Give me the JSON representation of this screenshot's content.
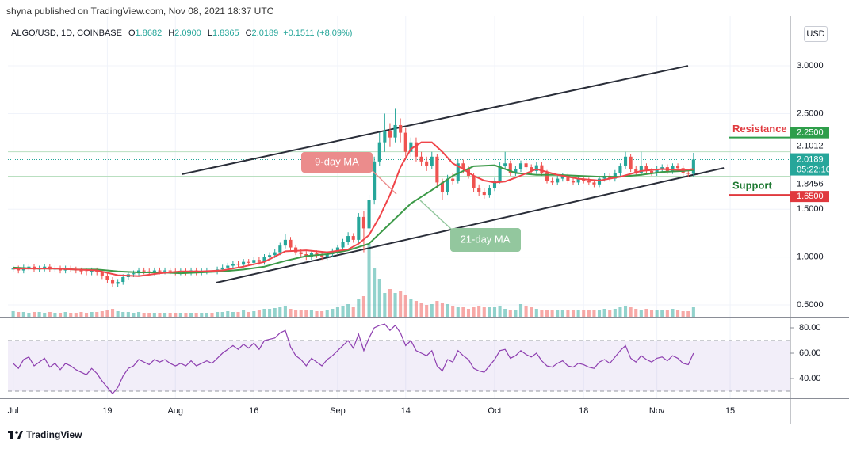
{
  "chart_data": {
    "type": "candlestick",
    "published": "shyna published on TradingView.com, Nov 08, 2021 18:37 UTC",
    "header": {
      "symbol": "ALGO/USD, 1D, COINBASE",
      "ohlc": [
        {
          "key": "O",
          "value": "1.8682"
        },
        {
          "key": "H",
          "value": "2.0900"
        },
        {
          "key": "L",
          "value": "1.8365"
        },
        {
          "key": "C",
          "value": "2.0189"
        }
      ],
      "change": "+0.1511 (+8.09%)"
    },
    "currency": "USD",
    "brand": "TradingView",
    "up_color": "#26a69a",
    "down_color": "#ef5350",
    "xlim": [
      -1,
      148.5
    ],
    "xticks": [
      {
        "value": 0,
        "label": "Jul"
      },
      {
        "value": 18,
        "label": "19"
      },
      {
        "value": 31,
        "label": "Aug"
      },
      {
        "value": 46,
        "label": "16"
      },
      {
        "value": 62,
        "label": "Sep"
      },
      {
        "value": 75,
        "label": "14"
      },
      {
        "value": 92,
        "label": "Oct"
      },
      {
        "value": 109,
        "label": "18"
      },
      {
        "value": 123,
        "label": "Nov"
      },
      {
        "value": 137,
        "label": "15"
      }
    ],
    "ylim": [
      0.376,
      3.522
    ],
    "yticks": [
      {
        "value": 0.5,
        "label": "0.5000"
      },
      {
        "value": 1,
        "label": "1.0000"
      },
      {
        "value": 1.5,
        "label": "1.5000"
      },
      {
        "value": 2.5,
        "label": "2.5000"
      },
      {
        "value": 3,
        "label": "3.0000"
      }
    ],
    "grid": true,
    "ohlc": [
      [
        0.87,
        0.91,
        0.84,
        0.88
      ],
      [
        0.88,
        0.91,
        0.83,
        0.86
      ],
      [
        0.86,
        0.92,
        0.83,
        0.89
      ],
      [
        0.89,
        0.93,
        0.86,
        0.9
      ],
      [
        0.9,
        0.93,
        0.84,
        0.87
      ],
      [
        0.87,
        0.91,
        0.84,
        0.88
      ],
      [
        0.88,
        0.93,
        0.85,
        0.9
      ],
      [
        0.9,
        0.93,
        0.84,
        0.87
      ],
      [
        0.87,
        0.91,
        0.84,
        0.88
      ],
      [
        0.88,
        0.91,
        0.83,
        0.86
      ],
      [
        0.86,
        0.91,
        0.83,
        0.88
      ],
      [
        0.88,
        0.91,
        0.84,
        0.87
      ],
      [
        0.87,
        0.9,
        0.83,
        0.86
      ],
      [
        0.86,
        0.89,
        0.82,
        0.85
      ],
      [
        0.85,
        0.88,
        0.81,
        0.84
      ],
      [
        0.84,
        0.89,
        0.81,
        0.86
      ],
      [
        0.86,
        0.89,
        0.81,
        0.84
      ],
      [
        0.84,
        0.87,
        0.77,
        0.8
      ],
      [
        0.8,
        0.83,
        0.73,
        0.76
      ],
      [
        0.76,
        0.79,
        0.69,
        0.72
      ],
      [
        0.72,
        0.77,
        0.69,
        0.74
      ],
      [
        0.74,
        0.82,
        0.71,
        0.79
      ],
      [
        0.79,
        0.85,
        0.76,
        0.82
      ],
      [
        0.82,
        0.86,
        0.79,
        0.83
      ],
      [
        0.83,
        0.89,
        0.8,
        0.86
      ],
      [
        0.86,
        0.89,
        0.82,
        0.85
      ],
      [
        0.85,
        0.88,
        0.81,
        0.84
      ],
      [
        0.84,
        0.89,
        0.81,
        0.86
      ],
      [
        0.86,
        0.89,
        0.82,
        0.85
      ],
      [
        0.85,
        0.89,
        0.82,
        0.86
      ],
      [
        0.86,
        0.89,
        0.82,
        0.85
      ],
      [
        0.85,
        0.88,
        0.81,
        0.84
      ],
      [
        0.84,
        0.88,
        0.81,
        0.85
      ],
      [
        0.85,
        0.88,
        0.81,
        0.84
      ],
      [
        0.84,
        0.89,
        0.81,
        0.86
      ],
      [
        0.86,
        0.89,
        0.81,
        0.84
      ],
      [
        0.84,
        0.88,
        0.81,
        0.85
      ],
      [
        0.85,
        0.89,
        0.82,
        0.86
      ],
      [
        0.86,
        0.89,
        0.82,
        0.85
      ],
      [
        0.85,
        0.9,
        0.82,
        0.87
      ],
      [
        0.87,
        0.92,
        0.84,
        0.89
      ],
      [
        0.89,
        0.94,
        0.86,
        0.91
      ],
      [
        0.91,
        0.96,
        0.88,
        0.93
      ],
      [
        0.93,
        0.96,
        0.89,
        0.92
      ],
      [
        0.92,
        0.98,
        0.89,
        0.95
      ],
      [
        0.95,
        0.98,
        0.91,
        0.94
      ],
      [
        0.94,
        1.0,
        0.91,
        0.97
      ],
      [
        0.97,
        1.0,
        0.92,
        0.95
      ],
      [
        0.95,
        1.03,
        0.92,
        1.0
      ],
      [
        1.0,
        1.05,
        0.97,
        1.02
      ],
      [
        1.02,
        1.08,
        0.99,
        1.05
      ],
      [
        1.05,
        1.15,
        1.02,
        1.12
      ],
      [
        1.12,
        1.24,
        1.09,
        1.18
      ],
      [
        1.18,
        1.21,
        1.07,
        1.1
      ],
      [
        1.1,
        1.13,
        1.02,
        1.05
      ],
      [
        1.05,
        1.08,
        1.0,
        1.03
      ],
      [
        1.03,
        1.06,
        0.97,
        1.0
      ],
      [
        1.0,
        1.07,
        0.97,
        1.04
      ],
      [
        1.04,
        1.07,
        0.99,
        1.02
      ],
      [
        1.02,
        1.05,
        0.97,
        1.0
      ],
      [
        1.0,
        1.06,
        0.97,
        1.03
      ],
      [
        1.03,
        1.09,
        1.0,
        1.06
      ],
      [
        1.06,
        1.13,
        1.03,
        1.1
      ],
      [
        1.1,
        1.19,
        1.07,
        1.16
      ],
      [
        1.16,
        1.26,
        1.13,
        1.22
      ],
      [
        1.22,
        1.25,
        1.15,
        1.18
      ],
      [
        1.18,
        1.46,
        1.15,
        1.42
      ],
      [
        1.42,
        1.48,
        1.05,
        1.3
      ],
      [
        1.3,
        1.65,
        1.25,
        1.6
      ],
      [
        1.6,
        2.05,
        1.55,
        2.0
      ],
      [
        2.0,
        2.3,
        1.95,
        2.2
      ],
      [
        2.2,
        2.5,
        2.1,
        2.32
      ],
      [
        2.32,
        2.4,
        2.15,
        2.25
      ],
      [
        2.25,
        2.55,
        2.2,
        2.38
      ],
      [
        2.38,
        2.45,
        2.2,
        2.3
      ],
      [
        2.3,
        2.35,
        2.05,
        2.1
      ],
      [
        2.1,
        2.25,
        2.05,
        2.2
      ],
      [
        2.2,
        2.25,
        2.0,
        2.05
      ],
      [
        2.05,
        2.1,
        1.95,
        2.0
      ],
      [
        2.0,
        2.05,
        1.9,
        1.95
      ],
      [
        1.95,
        2.1,
        1.92,
        2.05
      ],
      [
        2.05,
        2.08,
        1.72,
        1.78
      ],
      [
        1.78,
        1.82,
        1.6,
        1.68
      ],
      [
        1.68,
        1.86,
        1.65,
        1.82
      ],
      [
        1.82,
        1.88,
        1.76,
        1.8
      ],
      [
        1.8,
        2.02,
        1.77,
        1.98
      ],
      [
        1.98,
        2.02,
        1.88,
        1.92
      ],
      [
        1.92,
        1.95,
        1.82,
        1.85
      ],
      [
        1.85,
        1.88,
        1.68,
        1.72
      ],
      [
        1.72,
        1.76,
        1.64,
        1.68
      ],
      [
        1.68,
        1.72,
        1.61,
        1.65
      ],
      [
        1.65,
        1.75,
        1.62,
        1.72
      ],
      [
        1.72,
        1.83,
        1.69,
        1.8
      ],
      [
        1.8,
        1.99,
        1.77,
        1.95
      ],
      [
        1.95,
        2.1,
        1.92,
        1.98
      ],
      [
        1.98,
        2.01,
        1.85,
        1.88
      ],
      [
        1.88,
        1.95,
        1.85,
        1.92
      ],
      [
        1.92,
        2.01,
        1.89,
        1.98
      ],
      [
        1.98,
        2.01,
        1.91,
        1.94
      ],
      [
        1.94,
        1.97,
        1.87,
        1.9
      ],
      [
        1.9,
        1.99,
        1.87,
        1.96
      ],
      [
        1.96,
        1.99,
        1.85,
        1.88
      ],
      [
        1.88,
        1.91,
        1.77,
        1.8
      ],
      [
        1.8,
        1.83,
        1.75,
        1.78
      ],
      [
        1.78,
        1.85,
        1.75,
        1.82
      ],
      [
        1.82,
        1.88,
        1.79,
        1.85
      ],
      [
        1.85,
        1.88,
        1.77,
        1.8
      ],
      [
        1.8,
        1.83,
        1.75,
        1.78
      ],
      [
        1.78,
        1.85,
        1.75,
        1.82
      ],
      [
        1.82,
        1.85,
        1.77,
        1.8
      ],
      [
        1.8,
        1.83,
        1.75,
        1.78
      ],
      [
        1.78,
        1.81,
        1.73,
        1.76
      ],
      [
        1.76,
        1.85,
        1.73,
        1.82
      ],
      [
        1.82,
        1.88,
        1.79,
        1.85
      ],
      [
        1.85,
        1.88,
        1.79,
        1.82
      ],
      [
        1.82,
        1.91,
        1.79,
        1.88
      ],
      [
        1.88,
        1.98,
        1.85,
        1.95
      ],
      [
        1.95,
        2.1,
        1.92,
        2.05
      ],
      [
        2.05,
        2.08,
        1.89,
        1.92
      ],
      [
        1.92,
        1.95,
        1.85,
        1.88
      ],
      [
        1.88,
        2.1,
        1.85,
        1.95
      ],
      [
        1.95,
        1.98,
        1.87,
        1.9
      ],
      [
        1.9,
        1.93,
        1.85,
        1.88
      ],
      [
        1.88,
        1.95,
        1.85,
        1.92
      ],
      [
        1.92,
        1.97,
        1.89,
        1.94
      ],
      [
        1.94,
        1.97,
        1.87,
        1.9
      ],
      [
        1.9,
        1.98,
        1.87,
        1.95
      ],
      [
        1.95,
        1.98,
        1.9,
        1.93
      ],
      [
        1.93,
        1.96,
        1.85,
        1.88
      ],
      [
        1.88,
        1.91,
        1.84,
        1.87
      ],
      [
        1.87,
        2.09,
        1.84,
        2.02
      ]
    ],
    "volume": {
      "ylim": [
        0,
        100
      ],
      "values": [
        7,
        6,
        6,
        5,
        6,
        6,
        5,
        6,
        5,
        5,
        6,
        5,
        5,
        6,
        5,
        6,
        6,
        7,
        8,
        10,
        7,
        6,
        6,
        5,
        6,
        5,
        5,
        5,
        5,
        5,
        5,
        5,
        5,
        5,
        5,
        5,
        5,
        5,
        5,
        6,
        6,
        7,
        6,
        6,
        8,
        6,
        7,
        8,
        10,
        10,
        11,
        12,
        14,
        10,
        9,
        8,
        8,
        8,
        7,
        7,
        8,
        10,
        12,
        13,
        16,
        12,
        22,
        26,
        92,
        62,
        48,
        30,
        35,
        30,
        32,
        28,
        22,
        20,
        18,
        15,
        16,
        20,
        18,
        16,
        14,
        12,
        12,
        10,
        12,
        14,
        12,
        12,
        12,
        14,
        10,
        9,
        9,
        16,
        14,
        12,
        10,
        9,
        8,
        9,
        8,
        8,
        8,
        9,
        8,
        9,
        8,
        8,
        9,
        10,
        9,
        10,
        12,
        14,
        12,
        10,
        9,
        10,
        8,
        9,
        8,
        9,
        10,
        8,
        7,
        7,
        12
      ]
    },
    "ma9": {
      "name": "9-day MA",
      "color": "#f0454a",
      "x": [
        0,
        4,
        8,
        12,
        16,
        20,
        24,
        28,
        32,
        36,
        40,
        44,
        48,
        52,
        56,
        60,
        64,
        66,
        68,
        70,
        72,
        74,
        76,
        78,
        80,
        82,
        84,
        86,
        88,
        90,
        92,
        94,
        96,
        100,
        104,
        108,
        112,
        116,
        120,
        124,
        128,
        130
      ],
      "values": [
        0.88,
        0.88,
        0.88,
        0.87,
        0.86,
        0.81,
        0.8,
        0.83,
        0.85,
        0.85,
        0.86,
        0.9,
        0.95,
        1.06,
        1.07,
        1.05,
        1.08,
        1.14,
        1.23,
        1.42,
        1.65,
        1.94,
        2.13,
        2.2,
        2.2,
        2.1,
        1.98,
        1.92,
        1.85,
        1.8,
        1.78,
        1.79,
        1.83,
        1.92,
        1.86,
        1.82,
        1.8,
        1.84,
        1.9,
        1.92,
        1.91,
        1.92
      ]
    },
    "ma21": {
      "name": "21-day MA",
      "color": "#3c9a48",
      "x": [
        0,
        4,
        8,
        12,
        16,
        20,
        24,
        28,
        32,
        36,
        40,
        44,
        48,
        52,
        56,
        60,
        64,
        68,
        72,
        76,
        80,
        84,
        88,
        92,
        96,
        100,
        104,
        108,
        112,
        116,
        120,
        124,
        128,
        130
      ],
      "values": [
        0.89,
        0.88,
        0.88,
        0.87,
        0.87,
        0.85,
        0.84,
        0.84,
        0.83,
        0.84,
        0.85,
        0.87,
        0.9,
        0.96,
        1.01,
        1.03,
        1.07,
        1.14,
        1.35,
        1.56,
        1.7,
        1.85,
        1.95,
        1.96,
        1.88,
        1.86,
        1.86,
        1.85,
        1.84,
        1.84,
        1.86,
        1.89,
        1.9,
        1.91
      ]
    },
    "trendlines": [
      {
        "x": [
          32.2,
          128.96
        ],
        "y": [
          1.866,
          3.0
        ]
      },
      {
        "x": [
          38.8,
          135.8
        ],
        "y": [
          0.732,
          1.932
        ]
      }
    ],
    "price_lines": [
      {
        "value": 2.1012,
        "label": "2.1012"
      },
      {
        "value": 1.8456,
        "label": "1.8456"
      }
    ],
    "current": {
      "value": 2.0189,
      "label": "2.0189",
      "countdown": "05:22:10"
    },
    "levels": [
      {
        "name": "Resistance",
        "value": 2.25,
        "label": "2.2500",
        "line_color": "#2e9e4a",
        "text_color": "#e0393e"
      },
      {
        "name": "Support",
        "value": 1.65,
        "label": "1.6500",
        "line_color": "#e0393e",
        "text_color": "#1f7a33"
      }
    ],
    "rsi": {
      "ylim": [
        24.4,
        88.75
      ],
      "band": [
        30,
        70
      ],
      "color": "#8e3fb0",
      "yticks": [
        {
          "value": 40,
          "label": "40.00"
        },
        {
          "value": 60,
          "label": "60.00"
        },
        {
          "value": 80,
          "label": "80.00"
        }
      ],
      "values": [
        52,
        48,
        55,
        57,
        50,
        53,
        56,
        49,
        52,
        47,
        52,
        50,
        47,
        45,
        43,
        48,
        44,
        38,
        33,
        28,
        33,
        42,
        48,
        50,
        55,
        53,
        51,
        55,
        53,
        55,
        52,
        50,
        52,
        50,
        54,
        50,
        52,
        54,
        52,
        56,
        60,
        63,
        66,
        63,
        67,
        64,
        68,
        63,
        70,
        71,
        72,
        76,
        78,
        65,
        58,
        55,
        50,
        56,
        53,
        50,
        55,
        58,
        62,
        66,
        70,
        64,
        75,
        62,
        72,
        80,
        82,
        83,
        78,
        82,
        76,
        66,
        70,
        62,
        60,
        58,
        62,
        50,
        46,
        55,
        53,
        62,
        58,
        55,
        48,
        46,
        45,
        50,
        55,
        62,
        63,
        56,
        58,
        62,
        59,
        57,
        60,
        54,
        50,
        49,
        52,
        54,
        50,
        49,
        52,
        51,
        49,
        48,
        53,
        55,
        52,
        57,
        62,
        66,
        56,
        53,
        58,
        55,
        53,
        56,
        57,
        54,
        58,
        56,
        52,
        51,
        60
      ]
    }
  }
}
